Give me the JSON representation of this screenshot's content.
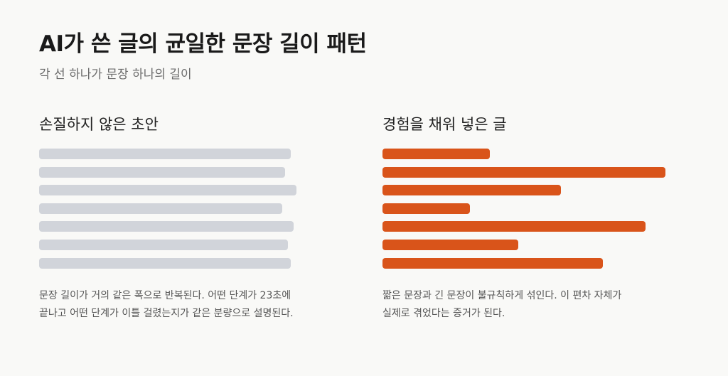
{
  "title": "AI가 쓴 글의 균일한 문장 길이 패턴",
  "subtitle": "각 선 하나가 문장 하나의 길이",
  "colors": {
    "uniform_bar": "#d1d4da",
    "varied_bar": "#d9541a",
    "background": "#f9f9f7"
  },
  "panels": {
    "left": {
      "heading": "손질하지 않은 초안",
      "caption_line1": "문장 길이가 거의 같은 폭으로 반복된다. 어떤 단계가 23초에",
      "caption_line2": "끝나고 어떤 단계가 이틀 걸렸는지가 같은 분량으로 설명된다.",
      "sentence_lengths": [
        0.89,
        0.87,
        0.91,
        0.86,
        0.9,
        0.88,
        0.89
      ]
    },
    "right": {
      "heading": "경험을 채워 넣은 글",
      "caption_line1": "짧은 문장과 긴 문장이 불규칙하게 섞인다. 이 편차 자체가",
      "caption_line2": "실제로 겪었다는 증거가 된다.",
      "sentence_lengths": [
        0.38,
        1.0,
        0.63,
        0.31,
        0.93,
        0.48,
        0.78
      ]
    }
  }
}
